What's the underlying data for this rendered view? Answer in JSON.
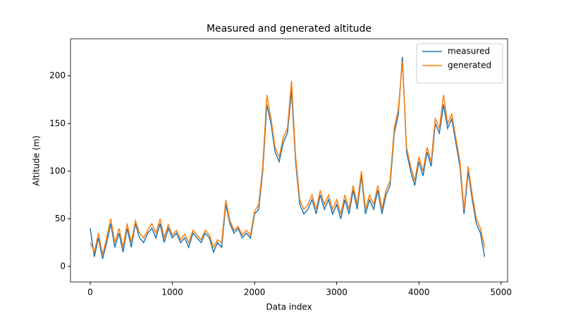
{
  "chart_data": {
    "type": "line",
    "title": "Measured and generated altitude",
    "x_label": "Data index",
    "y_label": "Altitude (m)",
    "x": [
      0,
      50,
      100,
      150,
      200,
      250,
      300,
      350,
      400,
      450,
      500,
      550,
      600,
      650,
      700,
      750,
      800,
      850,
      900,
      950,
      1000,
      1050,
      1100,
      1150,
      1200,
      1250,
      1300,
      1350,
      1400,
      1450,
      1500,
      1550,
      1600,
      1650,
      1700,
      1750,
      1800,
      1850,
      1900,
      1950,
      2000,
      2050,
      2100,
      2150,
      2200,
      2250,
      2300,
      2350,
      2400,
      2450,
      2500,
      2550,
      2600,
      2650,
      2700,
      2750,
      2800,
      2850,
      2900,
      2950,
      3000,
      3050,
      3100,
      3150,
      3200,
      3250,
      3300,
      3350,
      3400,
      3450,
      3500,
      3550,
      3600,
      3650,
      3700,
      3750,
      3800,
      3850,
      3900,
      3950,
      4000,
      4050,
      4100,
      4150,
      4200,
      4250,
      4300,
      4350,
      4400,
      4450,
      4500,
      4550,
      4600,
      4650,
      4700,
      4750,
      4800
    ],
    "series": [
      {
        "name": "measured",
        "color": "#1f77b4",
        "values": [
          40,
          10,
          30,
          8,
          25,
          45,
          20,
          35,
          15,
          40,
          20,
          45,
          30,
          25,
          35,
          40,
          30,
          45,
          25,
          40,
          30,
          35,
          25,
          30,
          20,
          35,
          30,
          25,
          35,
          30,
          15,
          25,
          20,
          65,
          45,
          35,
          40,
          30,
          35,
          30,
          55,
          60,
          100,
          170,
          150,
          120,
          110,
          130,
          140,
          185,
          110,
          65,
          55,
          60,
          70,
          55,
          75,
          60,
          70,
          55,
          65,
          50,
          70,
          55,
          80,
          60,
          95,
          55,
          70,
          60,
          80,
          55,
          75,
          85,
          140,
          160,
          220,
          120,
          100,
          85,
          110,
          95,
          120,
          105,
          150,
          140,
          170,
          145,
          155,
          130,
          105,
          55,
          100,
          70,
          45,
          35,
          10
        ]
      },
      {
        "name": "generated",
        "color": "#ff7f0e",
        "values": [
          25,
          15,
          35,
          12,
          30,
          50,
          25,
          40,
          20,
          45,
          25,
          48,
          35,
          30,
          38,
          45,
          35,
          50,
          30,
          44,
          33,
          38,
          28,
          34,
          25,
          38,
          33,
          28,
          38,
          33,
          20,
          28,
          25,
          70,
          48,
          38,
          42,
          33,
          38,
          33,
          58,
          65,
          105,
          180,
          155,
          125,
          115,
          135,
          145,
          195,
          115,
          70,
          60,
          65,
          75,
          60,
          80,
          65,
          75,
          60,
          70,
          55,
          75,
          60,
          85,
          65,
          100,
          60,
          75,
          65,
          85,
          60,
          80,
          90,
          145,
          165,
          215,
          125,
          105,
          90,
          115,
          100,
          125,
          110,
          155,
          145,
          180,
          150,
          160,
          135,
          110,
          60,
          105,
          75,
          50,
          40,
          20
        ]
      }
    ],
    "xlim": [
      -240,
      5080
    ],
    "ylim": [
      -16.3,
      239
    ],
    "xticks": [
      0,
      1000,
      2000,
      3000,
      4000,
      5000
    ],
    "yticks": [
      0,
      50,
      100,
      150,
      200
    ],
    "legend": "upper right"
  }
}
